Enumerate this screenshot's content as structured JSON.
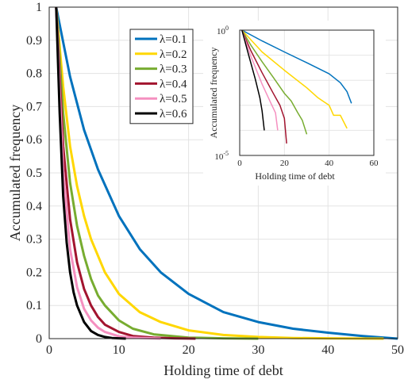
{
  "chart_data": [
    {
      "type": "line",
      "xlabel": "Holding time of debt",
      "ylabel": "Accumulated frequency",
      "xlim": [
        0,
        50
      ],
      "ylim": [
        0,
        1
      ],
      "xticks": [
        "0",
        "10",
        "20",
        "30",
        "40",
        "50"
      ],
      "yticks": [
        "0",
        "0.1",
        "0.2",
        "0.3",
        "0.4",
        "0.5",
        "0.6",
        "0.7",
        "0.8",
        "0.9",
        "1"
      ],
      "grid": true,
      "legend_position": "top-center",
      "series": [
        {
          "name": "λ=0.1",
          "color": "#0072BD",
          "x": [
            1,
            3,
            5,
            7,
            10,
            13,
            16,
            20,
            25,
            30,
            35,
            40,
            45,
            50
          ],
          "y": [
            1.0,
            0.79,
            0.63,
            0.51,
            0.37,
            0.27,
            0.2,
            0.135,
            0.08,
            0.05,
            0.03,
            0.018,
            0.008,
            0.0
          ]
        },
        {
          "name": "λ=0.2",
          "color": "#FFD700",
          "x": [
            1,
            2,
            3,
            4,
            5,
            6,
            8,
            10,
            13,
            16,
            20,
            25,
            30,
            35,
            40,
            48
          ],
          "y": [
            1.0,
            0.76,
            0.58,
            0.46,
            0.37,
            0.3,
            0.2,
            0.135,
            0.08,
            0.05,
            0.025,
            0.011,
            0.005,
            0.002,
            0.001,
            0.0
          ]
        },
        {
          "name": "λ=0.3",
          "color": "#77AC30",
          "x": [
            1,
            2,
            3,
            4,
            5,
            6,
            7,
            8,
            10,
            12,
            15,
            20,
            25,
            30
          ],
          "y": [
            1.0,
            0.68,
            0.47,
            0.34,
            0.25,
            0.18,
            0.13,
            0.1,
            0.055,
            0.03,
            0.013,
            0.003,
            0.001,
            0.0
          ]
        },
        {
          "name": "λ=0.4",
          "color": "#A2142F",
          "x": [
            1,
            2,
            3,
            4,
            5,
            6,
            7,
            8,
            10,
            12,
            15,
            18,
            21
          ],
          "y": [
            1.0,
            0.58,
            0.36,
            0.23,
            0.15,
            0.1,
            0.065,
            0.042,
            0.02,
            0.008,
            0.003,
            0.001,
            0.0
          ]
        },
        {
          "name": "λ=0.5",
          "color": "#F590C0",
          "x": [
            1,
            2,
            3,
            4,
            5,
            6,
            7,
            8,
            10,
            12,
            16
          ],
          "y": [
            1.0,
            0.5,
            0.27,
            0.155,
            0.09,
            0.055,
            0.033,
            0.02,
            0.007,
            0.003,
            0.0
          ]
        },
        {
          "name": "λ=0.6",
          "color": "#000000",
          "x": [
            1,
            1.5,
            2,
            2.5,
            3,
            3.5,
            4,
            5,
            6,
            7,
            8,
            9,
            11
          ],
          "y": [
            1.0,
            0.68,
            0.43,
            0.29,
            0.2,
            0.14,
            0.1,
            0.05,
            0.023,
            0.011,
            0.005,
            0.002,
            0.0
          ]
        }
      ]
    },
    {
      "type": "line",
      "xlabel": "Holding time of debt",
      "ylabel": "Accumulated frequency",
      "xlim": [
        0,
        60
      ],
      "ylim": [
        1e-05,
        1
      ],
      "yscale": "log",
      "xticks": [
        "0",
        "20",
        "40",
        "60"
      ],
      "yticks": [
        {
          "base": "10",
          "exp": "0",
          "value": 1
        },
        {
          "base": "10",
          "exp": "-5",
          "value": 1e-05
        }
      ],
      "grid": true,
      "series": [
        {
          "color": "#0072BD",
          "x": [
            1,
            10,
            20,
            30,
            40,
            45,
            48,
            50
          ],
          "y": [
            1.0,
            0.37,
            0.135,
            0.05,
            0.018,
            0.008,
            0.0035,
            0.0012
          ]
        },
        {
          "color": "#FFD700",
          "x": [
            1,
            10,
            20,
            30,
            35,
            40,
            42,
            45,
            48
          ],
          "y": [
            1.0,
            0.135,
            0.025,
            0.005,
            0.002,
            0.001,
            0.0004,
            0.0004,
            0.00012
          ]
        },
        {
          "color": "#77AC30",
          "x": [
            1,
            5,
            10,
            15,
            20,
            23,
            26,
            28,
            30
          ],
          "y": [
            1.0,
            0.25,
            0.055,
            0.013,
            0.003,
            0.0015,
            0.0005,
            0.00025,
            7e-05
          ]
        },
        {
          "color": "#A2142F",
          "x": [
            1,
            5,
            10,
            15,
            18,
            20,
            21
          ],
          "y": [
            1.0,
            0.15,
            0.02,
            0.003,
            0.001,
            0.0003,
            3e-05
          ]
        },
        {
          "color": "#F590C0",
          "x": [
            1,
            5,
            10,
            14,
            16,
            17
          ],
          "y": [
            1.0,
            0.09,
            0.007,
            0.0012,
            0.0005,
            0.0001
          ]
        },
        {
          "color": "#000000",
          "x": [
            1,
            4,
            7,
            9,
            10,
            11
          ],
          "y": [
            1.0,
            0.1,
            0.011,
            0.002,
            0.0006,
            0.0001
          ]
        }
      ]
    }
  ]
}
